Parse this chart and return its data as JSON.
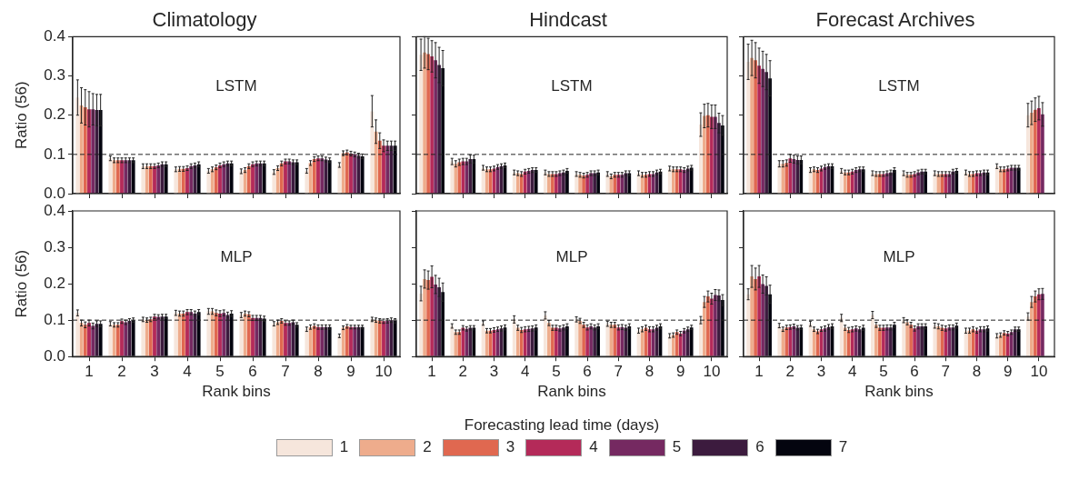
{
  "chart_data": [
    {
      "type": "bar",
      "title": "Climatology",
      "ylabel": "Ratio (56)",
      "annotations": [
        "LSTM"
      ],
      "categories": [
        "1",
        "2",
        "3",
        "4",
        "5",
        "6",
        "7",
        "8",
        "9",
        "10"
      ],
      "ylim": [
        0,
        0.4
      ],
      "yticks": [
        {
          "value": 0,
          "label": "0.0"
        },
        {
          "value": 0.1,
          "label": "0.1"
        },
        {
          "value": 0.2,
          "label": "0.2"
        },
        {
          "value": 0.3,
          "label": "0.3"
        },
        {
          "value": 0.4,
          "label": "0.4"
        }
      ],
      "tick_labels": "y",
      "grid": false,
      "legend": "bottom",
      "legend_title": "Forecasting lead time (days)",
      "ref_lines": [
        {
          "axis": "y",
          "value": 0.1,
          "line_style": "dashed",
          "color": "#222222"
        }
      ],
      "series": [
        {
          "name": "1",
          "color": "#f6e6dc",
          "values": [
            0.245,
            0.09,
            0.07,
            0.062,
            0.058,
            0.057,
            0.055,
            0.058,
            0.073,
            0.21
          ],
          "errors": [
            0.045,
            0.006,
            0.006,
            0.006,
            0.006,
            0.006,
            0.006,
            0.006,
            0.006,
            0.04
          ]
        },
        {
          "name": "2",
          "color": "#eeac8c",
          "values": [
            0.225,
            0.085,
            0.07,
            0.063,
            0.062,
            0.06,
            0.065,
            0.078,
            0.103,
            0.158
          ],
          "errors": [
            0.045,
            0.006,
            0.006,
            0.006,
            0.006,
            0.006,
            0.006,
            0.006,
            0.006,
            0.03
          ]
        },
        {
          "name": "3",
          "color": "#e06850",
          "values": [
            0.22,
            0.085,
            0.07,
            0.063,
            0.067,
            0.07,
            0.077,
            0.088,
            0.105,
            0.135
          ],
          "errors": [
            0.045,
            0.006,
            0.006,
            0.006,
            0.006,
            0.006,
            0.006,
            0.006,
            0.006,
            0.02
          ]
        },
        {
          "name": "4",
          "color": "#b42a59",
          "values": [
            0.215,
            0.085,
            0.07,
            0.065,
            0.072,
            0.075,
            0.082,
            0.09,
            0.102,
            0.122
          ],
          "errors": [
            0.045,
            0.006,
            0.006,
            0.006,
            0.006,
            0.006,
            0.006,
            0.006,
            0.006,
            0.015
          ]
        },
        {
          "name": "5",
          "color": "#752961",
          "values": [
            0.215,
            0.085,
            0.072,
            0.07,
            0.075,
            0.077,
            0.082,
            0.09,
            0.1,
            0.122
          ],
          "errors": [
            0.04,
            0.006,
            0.006,
            0.006,
            0.006,
            0.006,
            0.006,
            0.006,
            0.006,
            0.012
          ]
        },
        {
          "name": "6",
          "color": "#3c1b3e",
          "values": [
            0.213,
            0.085,
            0.075,
            0.072,
            0.077,
            0.077,
            0.08,
            0.087,
            0.097,
            0.122
          ],
          "errors": [
            0.04,
            0.006,
            0.006,
            0.006,
            0.006,
            0.006,
            0.006,
            0.006,
            0.006,
            0.012
          ]
        },
        {
          "name": "7",
          "color": "#04050f",
          "values": [
            0.213,
            0.085,
            0.075,
            0.075,
            0.077,
            0.077,
            0.08,
            0.085,
            0.095,
            0.122
          ],
          "errors": [
            0.04,
            0.006,
            0.006,
            0.006,
            0.006,
            0.006,
            0.006,
            0.006,
            0.006,
            0.012
          ]
        }
      ]
    },
    {
      "type": "bar",
      "title": "Hindcast",
      "annotations": [
        "LSTM"
      ],
      "categories": [
        "1",
        "2",
        "3",
        "4",
        "5",
        "6",
        "7",
        "8",
        "9",
        "10"
      ],
      "ylim": [
        0,
        0.4
      ],
      "yticks": [
        0,
        0.1,
        0.2,
        0.3,
        0.4
      ],
      "tick_labels": false,
      "grid": false,
      "legend": false,
      "ref_lines": [
        {
          "axis": "y",
          "value": 0.1,
          "line_style": "dashed",
          "color": "#222222"
        }
      ],
      "series": [
        {
          "name": "1",
          "color": "#f6e6dc",
          "values": [
            0.354,
            0.082,
            0.066,
            0.054,
            0.054,
            0.05,
            0.05,
            0.052,
            0.064,
            0.176
          ],
          "errors": [
            0.04,
            0.008,
            0.006,
            0.006,
            0.006,
            0.006,
            0.006,
            0.006,
            0.006,
            0.03
          ]
        },
        {
          "name": "2",
          "color": "#eeac8c",
          "values": [
            0.36,
            0.076,
            0.062,
            0.052,
            0.05,
            0.048,
            0.044,
            0.048,
            0.062,
            0.198
          ],
          "errors": [
            0.04,
            0.008,
            0.006,
            0.006,
            0.006,
            0.006,
            0.006,
            0.006,
            0.006,
            0.03
          ]
        },
        {
          "name": "3",
          "color": "#e06850",
          "values": [
            0.356,
            0.08,
            0.062,
            0.05,
            0.05,
            0.046,
            0.048,
            0.048,
            0.062,
            0.2
          ],
          "errors": [
            0.04,
            0.008,
            0.006,
            0.006,
            0.006,
            0.006,
            0.006,
            0.006,
            0.006,
            0.03
          ]
        },
        {
          "name": "4",
          "color": "#b42a59",
          "values": [
            0.35,
            0.082,
            0.064,
            0.056,
            0.05,
            0.048,
            0.048,
            0.05,
            0.062,
            0.196
          ],
          "errors": [
            0.04,
            0.008,
            0.006,
            0.006,
            0.006,
            0.006,
            0.006,
            0.006,
            0.006,
            0.03
          ]
        },
        {
          "name": "5",
          "color": "#752961",
          "values": [
            0.34,
            0.082,
            0.068,
            0.058,
            0.052,
            0.052,
            0.048,
            0.05,
            0.06,
            0.196
          ],
          "errors": [
            0.045,
            0.008,
            0.006,
            0.006,
            0.006,
            0.006,
            0.006,
            0.006,
            0.006,
            0.03
          ]
        },
        {
          "name": "6",
          "color": "#3c1b3e",
          "values": [
            0.328,
            0.088,
            0.07,
            0.06,
            0.054,
            0.052,
            0.052,
            0.054,
            0.064,
            0.18
          ],
          "errors": [
            0.045,
            0.01,
            0.006,
            0.006,
            0.006,
            0.006,
            0.006,
            0.006,
            0.006,
            0.025
          ]
        },
        {
          "name": "7",
          "color": "#04050f",
          "values": [
            0.32,
            0.088,
            0.072,
            0.06,
            0.058,
            0.054,
            0.052,
            0.056,
            0.066,
            0.174
          ],
          "errors": [
            0.045,
            0.01,
            0.006,
            0.006,
            0.006,
            0.006,
            0.006,
            0.006,
            0.006,
            0.025
          ]
        }
      ]
    },
    {
      "type": "bar",
      "title": "Forecast Archives",
      "annotations": [
        "LSTM"
      ],
      "categories": [
        "1",
        "2",
        "3",
        "4",
        "5",
        "6",
        "7",
        "8",
        "9",
        "10"
      ],
      "ylim": [
        0,
        0.4
      ],
      "yticks": [
        0,
        0.1,
        0.2,
        0.3,
        0.4
      ],
      "tick_labels": false,
      "grid": false,
      "legend": false,
      "ref_lines": [
        {
          "axis": "y",
          "value": 0.1,
          "line_style": "dashed",
          "color": "#222222"
        }
      ],
      "series": [
        {
          "name": "1",
          "color": "#f6e6dc",
          "values": [
            0.336,
            0.076,
            0.06,
            0.058,
            0.052,
            0.052,
            0.052,
            0.054,
            0.07,
            0.2
          ],
          "errors": [
            0.045,
            0.008,
            0.006,
            0.006,
            0.006,
            0.006,
            0.006,
            0.006,
            0.006,
            0.03
          ]
        },
        {
          "name": "2",
          "color": "#eeac8c",
          "values": [
            0.346,
            0.076,
            0.062,
            0.054,
            0.05,
            0.048,
            0.05,
            0.05,
            0.062,
            0.206
          ],
          "errors": [
            0.045,
            0.008,
            0.006,
            0.006,
            0.006,
            0.006,
            0.006,
            0.006,
            0.006,
            0.03
          ]
        },
        {
          "name": "3",
          "color": "#e06850",
          "values": [
            0.34,
            0.078,
            0.06,
            0.054,
            0.05,
            0.048,
            0.05,
            0.05,
            0.062,
            0.214
          ],
          "errors": [
            0.045,
            0.008,
            0.006,
            0.006,
            0.006,
            0.006,
            0.006,
            0.006,
            0.006,
            0.03
          ]
        },
        {
          "name": "4",
          "color": "#b42a59",
          "values": [
            0.326,
            0.09,
            0.064,
            0.056,
            0.05,
            0.05,
            0.05,
            0.052,
            0.064,
            0.218
          ],
          "errors": [
            0.045,
            0.01,
            0.006,
            0.006,
            0.006,
            0.006,
            0.006,
            0.006,
            0.006,
            0.03
          ]
        },
        {
          "name": "5",
          "color": "#752961",
          "values": [
            0.318,
            0.088,
            0.068,
            0.06,
            0.052,
            0.054,
            0.05,
            0.052,
            0.066,
            0.202
          ],
          "errors": [
            0.045,
            0.01,
            0.006,
            0.006,
            0.006,
            0.006,
            0.006,
            0.006,
            0.006,
            0.03
          ]
        },
        {
          "name": "6",
          "color": "#3c1b3e",
          "values": [
            0.31,
            0.086,
            0.07,
            0.062,
            0.054,
            0.056,
            0.056,
            0.054,
            0.066,
            null
          ],
          "errors": [
            0.045,
            0.01,
            0.006,
            0.006,
            0.006,
            0.006,
            0.006,
            0.006,
            0.006,
            null
          ]
        },
        {
          "name": "7",
          "color": "#04050f",
          "values": [
            0.294,
            0.086,
            0.07,
            0.062,
            0.06,
            0.056,
            0.058,
            0.054,
            0.066,
            null
          ],
          "errors": [
            0.045,
            0.01,
            0.006,
            0.006,
            0.006,
            0.006,
            0.006,
            0.006,
            0.006,
            null
          ]
        }
      ]
    },
    {
      "type": "bar",
      "xlabel": "Rank bins",
      "ylabel": "Ratio (56)",
      "annotations": [
        "MLP"
      ],
      "categories": [
        "1",
        "2",
        "3",
        "4",
        "5",
        "6",
        "7",
        "8",
        "9",
        "10"
      ],
      "ylim": [
        0,
        0.4
      ],
      "yticks": [
        {
          "value": 0,
          "label": "0.0"
        },
        {
          "value": 0.1,
          "label": "0.1"
        },
        {
          "value": 0.2,
          "label": "0.2"
        },
        {
          "value": 0.3,
          "label": "0.3"
        },
        {
          "value": 0.4,
          "label": "0.4"
        }
      ],
      "grid": false,
      "legend": false,
      "ref_lines": [
        {
          "axis": "y",
          "value": 0.1,
          "line_style": "dashed",
          "color": "#222222"
        }
      ],
      "series": [
        {
          "name": "1",
          "color": "#f6e6dc",
          "values": [
            0.12,
            0.09,
            0.102,
            0.12,
            0.124,
            0.114,
            0.09,
            0.075,
            0.057,
            0.102
          ],
          "errors": [
            0.008,
            0.006,
            0.006,
            0.007,
            0.008,
            0.007,
            0.006,
            0.006,
            0.005,
            0.006
          ]
        },
        {
          "name": "2",
          "color": "#eeac8c",
          "values": [
            0.092,
            0.087,
            0.1,
            0.118,
            0.124,
            0.118,
            0.094,
            0.081,
            0.079,
            0.1
          ],
          "errors": [
            0.008,
            0.006,
            0.006,
            0.007,
            0.008,
            0.007,
            0.006,
            0.006,
            0.005,
            0.006
          ]
        },
        {
          "name": "3",
          "color": "#e06850",
          "values": [
            0.087,
            0.087,
            0.102,
            0.118,
            0.12,
            0.116,
            0.098,
            0.084,
            0.083,
            0.098
          ],
          "errors": [
            0.008,
            0.006,
            0.006,
            0.007,
            0.008,
            0.007,
            0.006,
            0.006,
            0.005,
            0.006
          ]
        },
        {
          "name": "4",
          "color": "#b42a59",
          "values": [
            0.092,
            0.097,
            0.11,
            0.122,
            0.118,
            0.106,
            0.092,
            0.081,
            0.081,
            0.097
          ],
          "errors": [
            0.008,
            0.006,
            0.006,
            0.007,
            0.008,
            0.007,
            0.006,
            0.006,
            0.005,
            0.006
          ]
        },
        {
          "name": "5",
          "color": "#752961",
          "values": [
            0.084,
            0.094,
            0.109,
            0.122,
            0.12,
            0.106,
            0.092,
            0.081,
            0.081,
            0.098
          ],
          "errors": [
            0.008,
            0.006,
            0.006,
            0.007,
            0.008,
            0.007,
            0.006,
            0.006,
            0.005,
            0.006
          ]
        },
        {
          "name": "6",
          "color": "#3c1b3e",
          "values": [
            0.09,
            0.098,
            0.11,
            0.118,
            0.114,
            0.106,
            0.094,
            0.081,
            0.081,
            0.1
          ],
          "errors": [
            0.008,
            0.006,
            0.006,
            0.007,
            0.008,
            0.007,
            0.006,
            0.006,
            0.005,
            0.006
          ]
        },
        {
          "name": "7",
          "color": "#04050f",
          "values": [
            0.09,
            0.1,
            0.11,
            0.122,
            0.118,
            0.104,
            0.087,
            0.081,
            0.081,
            0.098
          ],
          "errors": [
            0.008,
            0.006,
            0.006,
            0.007,
            0.008,
            0.007,
            0.006,
            0.006,
            0.005,
            0.006
          ]
        }
      ]
    },
    {
      "type": "bar",
      "xlabel": "Rank bins",
      "annotations": [
        "MLP"
      ],
      "categories": [
        "1",
        "2",
        "3",
        "4",
        "5",
        "6",
        "7",
        "8",
        "9",
        "10"
      ],
      "ylim": [
        0,
        0.4
      ],
      "yticks": [
        0,
        0.1,
        0.2,
        0.3,
        0.4
      ],
      "tick_labels": "x",
      "grid": false,
      "legend": false,
      "ref_lines": [
        {
          "axis": "y",
          "value": 0.1,
          "line_style": "dashed",
          "color": "#222222"
        }
      ],
      "series": [
        {
          "name": "1",
          "color": "#f6e6dc",
          "values": [
            0.173,
            0.084,
            0.092,
            0.102,
            0.113,
            0.102,
            0.09,
            0.071,
            0.057,
            0.1
          ],
          "errors": [
            0.02,
            0.006,
            0.006,
            0.01,
            0.01,
            0.007,
            0.007,
            0.007,
            0.006,
            0.01
          ]
        },
        {
          "name": "2",
          "color": "#eeac8c",
          "values": [
            0.213,
            0.067,
            0.071,
            0.079,
            0.092,
            0.098,
            0.087,
            0.075,
            0.059,
            0.15
          ],
          "errors": [
            0.025,
            0.006,
            0.006,
            0.007,
            0.007,
            0.007,
            0.007,
            0.007,
            0.006,
            0.015
          ]
        },
        {
          "name": "3",
          "color": "#e06850",
          "values": [
            0.21,
            0.067,
            0.071,
            0.073,
            0.079,
            0.087,
            0.087,
            0.079,
            0.067,
            0.165
          ],
          "errors": [
            0.025,
            0.006,
            0.006,
            0.007,
            0.007,
            0.007,
            0.007,
            0.007,
            0.006,
            0.015
          ]
        },
        {
          "name": "4",
          "color": "#b42a59",
          "values": [
            0.219,
            0.079,
            0.073,
            0.075,
            0.079,
            0.08,
            0.08,
            0.075,
            0.063,
            0.159
          ],
          "errors": [
            0.03,
            0.006,
            0.006,
            0.007,
            0.007,
            0.007,
            0.007,
            0.007,
            0.006,
            0.015
          ]
        },
        {
          "name": "5",
          "color": "#752961",
          "values": [
            0.198,
            0.076,
            0.075,
            0.076,
            0.077,
            0.083,
            0.081,
            0.075,
            0.071,
            0.169
          ],
          "errors": [
            0.025,
            0.006,
            0.006,
            0.007,
            0.007,
            0.007,
            0.007,
            0.007,
            0.006,
            0.015
          ]
        },
        {
          "name": "6",
          "color": "#3c1b3e",
          "values": [
            0.19,
            0.079,
            0.077,
            0.077,
            0.08,
            0.08,
            0.079,
            0.079,
            0.075,
            0.168
          ],
          "errors": [
            0.025,
            0.006,
            0.007,
            0.007,
            0.007,
            0.007,
            0.007,
            0.007,
            0.006,
            0.015
          ]
        },
        {
          "name": "7",
          "color": "#04050f",
          "values": [
            0.177,
            0.079,
            0.08,
            0.08,
            0.083,
            0.083,
            0.083,
            0.083,
            0.08,
            0.155
          ],
          "errors": [
            0.025,
            0.006,
            0.007,
            0.007,
            0.007,
            0.007,
            0.007,
            0.007,
            0.006,
            0.015
          ]
        }
      ]
    },
    {
      "type": "bar",
      "xlabel": "Rank bins",
      "annotations": [
        "MLP"
      ],
      "categories": [
        "1",
        "2",
        "3",
        "4",
        "5",
        "6",
        "7",
        "8",
        "9",
        "10"
      ],
      "ylim": [
        0,
        0.4
      ],
      "yticks": [
        0,
        0.1,
        0.2,
        0.3,
        0.4
      ],
      "tick_labels": "x",
      "grid": false,
      "legend": false,
      "ref_lines": [
        {
          "axis": "y",
          "value": 0.1,
          "line_style": "dashed",
          "color": "#222222"
        }
      ],
      "series": [
        {
          "name": "1",
          "color": "#f6e6dc",
          "values": [
            0.171,
            0.085,
            0.09,
            0.106,
            0.114,
            0.1,
            0.085,
            0.071,
            0.057,
            0.11
          ],
          "errors": [
            0.015,
            0.006,
            0.007,
            0.01,
            0.01,
            0.007,
            0.007,
            0.007,
            0.006,
            0.01
          ]
        },
        {
          "name": "2",
          "color": "#eeac8c",
          "values": [
            0.22,
            0.075,
            0.075,
            0.079,
            0.087,
            0.094,
            0.083,
            0.071,
            0.059,
            0.15
          ],
          "errors": [
            0.03,
            0.006,
            0.006,
            0.007,
            0.007,
            0.007,
            0.007,
            0.007,
            0.006,
            0.015
          ]
        },
        {
          "name": "3",
          "color": "#e06850",
          "values": [
            0.213,
            0.08,
            0.069,
            0.073,
            0.079,
            0.087,
            0.079,
            0.075,
            0.065,
            0.165
          ],
          "errors": [
            0.03,
            0.006,
            0.006,
            0.007,
            0.007,
            0.007,
            0.007,
            0.007,
            0.006,
            0.015
          ]
        },
        {
          "name": "4",
          "color": "#b42a59",
          "values": [
            0.22,
            0.081,
            0.075,
            0.075,
            0.079,
            0.077,
            0.077,
            0.071,
            0.063,
            0.171
          ],
          "errors": [
            0.03,
            0.006,
            0.006,
            0.007,
            0.007,
            0.007,
            0.007,
            0.007,
            0.006,
            0.015
          ]
        },
        {
          "name": "5",
          "color": "#752961",
          "values": [
            0.199,
            0.083,
            0.077,
            0.077,
            0.08,
            0.083,
            0.08,
            0.075,
            0.067,
            0.172
          ],
          "errors": [
            0.025,
            0.006,
            0.007,
            0.007,
            0.007,
            0.007,
            0.007,
            0.007,
            0.006,
            0.015
          ]
        },
        {
          "name": "6",
          "color": "#3c1b3e",
          "values": [
            0.194,
            0.079,
            0.081,
            0.075,
            0.08,
            0.083,
            0.08,
            0.075,
            0.075,
            null
          ],
          "errors": [
            0.025,
            0.006,
            0.007,
            0.007,
            0.007,
            0.007,
            0.007,
            0.007,
            0.006,
            null
          ]
        },
        {
          "name": "7",
          "color": "#04050f",
          "values": [
            0.171,
            0.08,
            0.083,
            0.079,
            0.087,
            0.083,
            0.085,
            0.077,
            0.075,
            null
          ],
          "errors": [
            0.025,
            0.006,
            0.007,
            0.007,
            0.007,
            0.007,
            0.007,
            0.007,
            0.006,
            null
          ]
        }
      ]
    }
  ]
}
